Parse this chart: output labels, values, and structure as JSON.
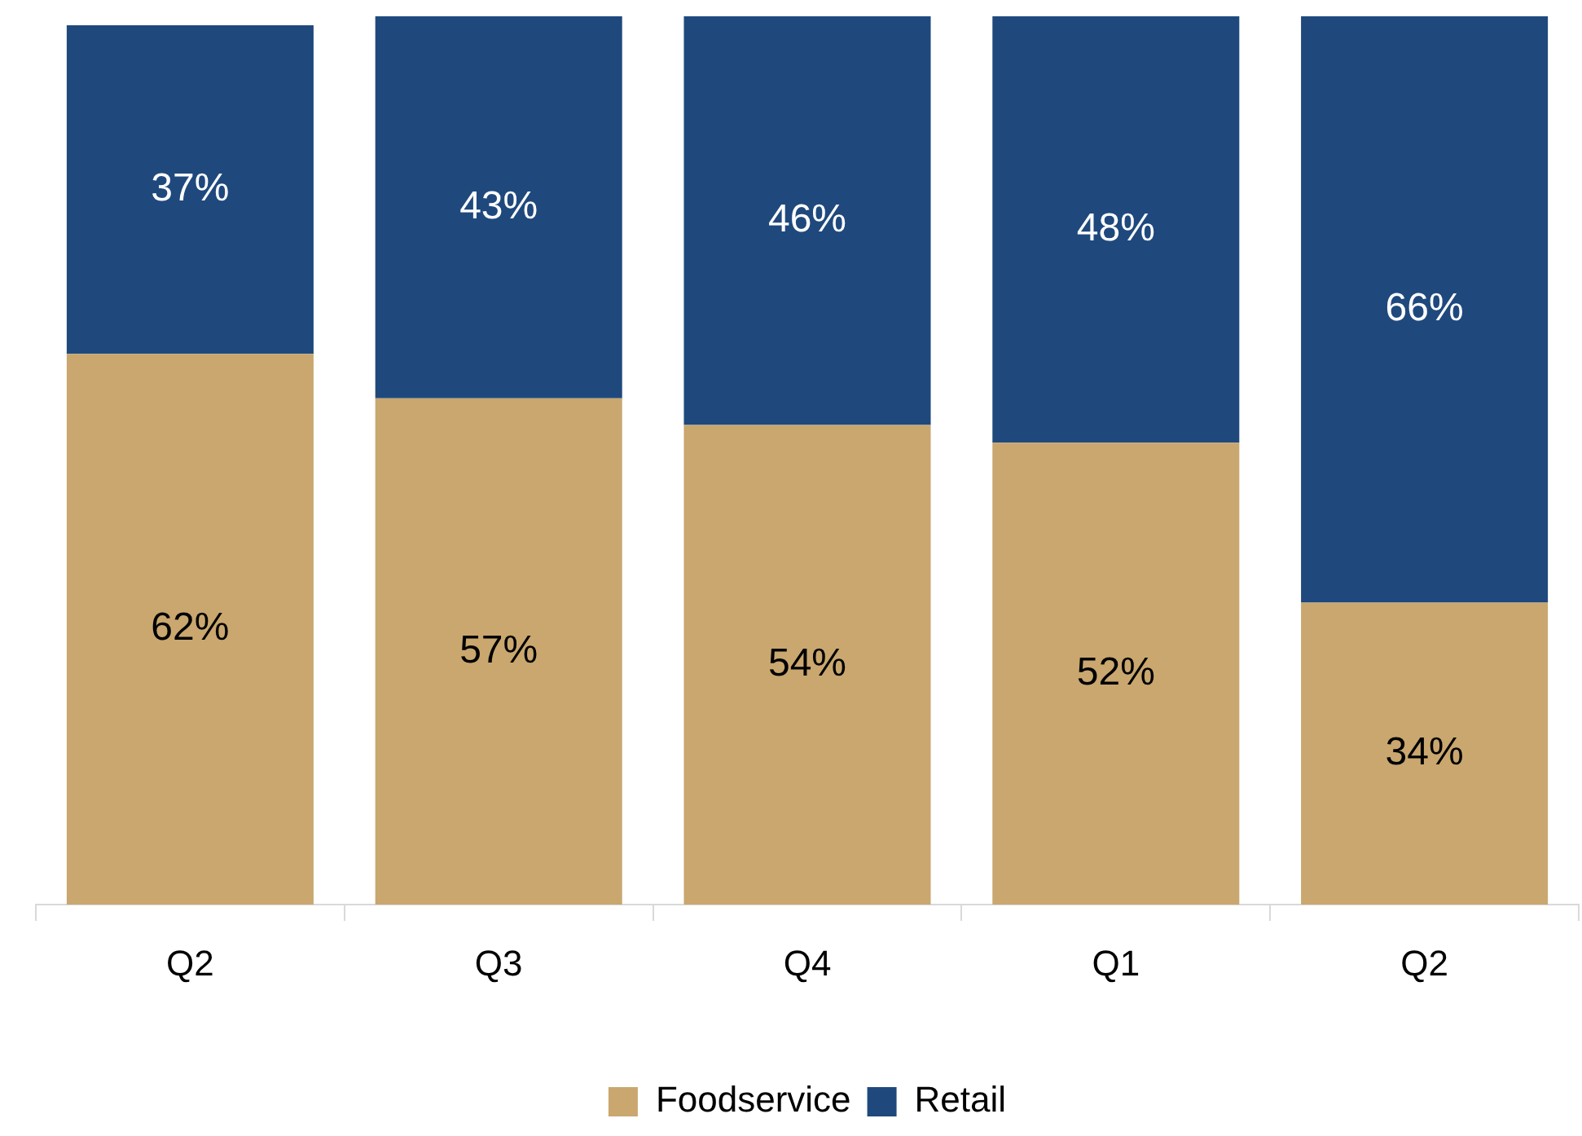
{
  "chart_data": {
    "type": "bar",
    "stacked": true,
    "categories": [
      "Q2",
      "Q3",
      "Q4",
      "Q1",
      "Q2"
    ],
    "series": [
      {
        "name": "Foodservice",
        "color": "#c9a76e",
        "values": [
          62,
          57,
          54,
          52,
          34
        ],
        "value_labels": [
          "62%",
          "57%",
          "54%",
          "52%",
          "34%"
        ]
      },
      {
        "name": "Retail",
        "color": "#1f497d",
        "values": [
          37,
          43,
          46,
          48,
          66
        ],
        "value_labels": [
          "37%",
          "43%",
          "46%",
          "48%",
          "66%"
        ]
      }
    ],
    "legend": "bottom",
    "grid": false
  }
}
